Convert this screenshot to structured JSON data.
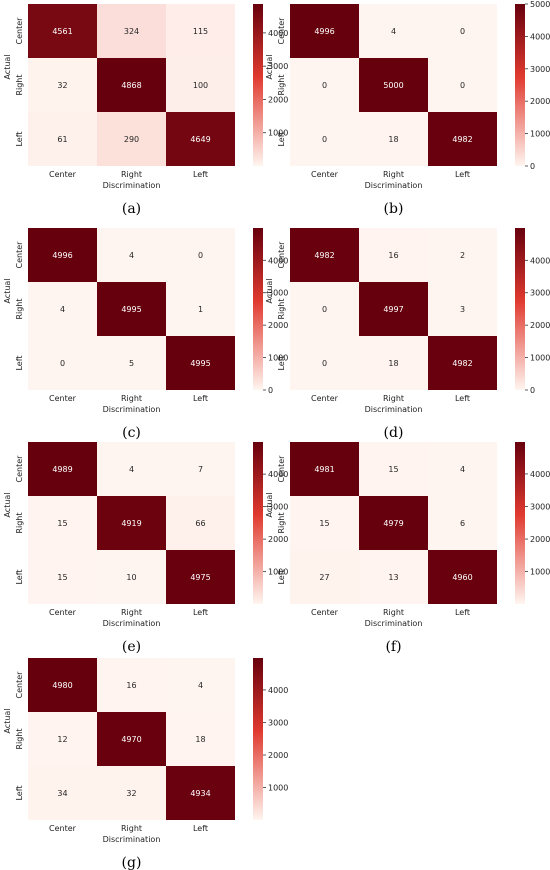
{
  "color_scale": {
    "low": "#fff5f0",
    "mid": "#e03a2f",
    "high": "#67000d"
  },
  "chart_data": [
    {
      "type": "heatmap",
      "caption": "(a)",
      "xlabel": "Discrimination",
      "ylabel": "Actual",
      "x_categories": [
        "Center",
        "Right",
        "Left"
      ],
      "y_categories": [
        "Center",
        "Right",
        "Left"
      ],
      "values": [
        [
          4561,
          324,
          115
        ],
        [
          32,
          4868,
          100
        ],
        [
          61,
          290,
          4649
        ]
      ],
      "colorbar": {
        "range": [
          0,
          4868
        ],
        "ticks": [
          1000,
          2000,
          3000,
          4000
        ]
      }
    },
    {
      "type": "heatmap",
      "caption": "(b)",
      "xlabel": "Discrimination",
      "ylabel": "Actual",
      "x_categories": [
        "Center",
        "Right",
        "Left"
      ],
      "y_categories": [
        "Center",
        "Right",
        "Left"
      ],
      "values": [
        [
          4996,
          4,
          0
        ],
        [
          0,
          5000,
          0
        ],
        [
          0,
          18,
          4982
        ]
      ],
      "colorbar": {
        "range": [
          0,
          5000
        ],
        "ticks": [
          0,
          1000,
          2000,
          3000,
          4000,
          5000
        ]
      }
    },
    {
      "type": "heatmap",
      "caption": "(c)",
      "xlabel": "Discrimination",
      "ylabel": "Actual",
      "x_categories": [
        "Center",
        "Right",
        "Left"
      ],
      "y_categories": [
        "Center",
        "Right",
        "Left"
      ],
      "values": [
        [
          4996,
          4,
          0
        ],
        [
          4,
          4995,
          1
        ],
        [
          0,
          5,
          4995
        ]
      ],
      "colorbar": {
        "range": [
          0,
          4996
        ],
        "ticks": [
          0,
          1000,
          2000,
          3000,
          4000
        ]
      }
    },
    {
      "type": "heatmap",
      "caption": "(d)",
      "xlabel": "Discrimination",
      "ylabel": "Actual",
      "x_categories": [
        "Center",
        "Right",
        "Left"
      ],
      "y_categories": [
        "Center",
        "Right",
        "Left"
      ],
      "values": [
        [
          4982,
          16,
          2
        ],
        [
          0,
          4997,
          3
        ],
        [
          0,
          18,
          4982
        ]
      ],
      "colorbar": {
        "range": [
          0,
          4997
        ],
        "ticks": [
          0,
          1000,
          2000,
          3000,
          4000
        ]
      }
    },
    {
      "type": "heatmap",
      "caption": "(e)",
      "xlabel": "Discrimination",
      "ylabel": "Actual",
      "x_categories": [
        "Center",
        "Right",
        "Left"
      ],
      "y_categories": [
        "Center",
        "Right",
        "Left"
      ],
      "values": [
        [
          4989,
          4,
          7
        ],
        [
          15,
          4919,
          66
        ],
        [
          15,
          10,
          4975
        ]
      ],
      "colorbar": {
        "range": [
          4,
          4989
        ],
        "ticks": [
          1000,
          2000,
          3000,
          4000
        ]
      }
    },
    {
      "type": "heatmap",
      "caption": "(f)",
      "xlabel": "Discrimination",
      "ylabel": "Actual",
      "x_categories": [
        "Center",
        "Right",
        "Left"
      ],
      "y_categories": [
        "Center",
        "Right",
        "Left"
      ],
      "values": [
        [
          4981,
          15,
          4
        ],
        [
          15,
          4979,
          6
        ],
        [
          27,
          13,
          4960
        ]
      ],
      "colorbar": {
        "range": [
          4,
          4981
        ],
        "ticks": [
          1000,
          2000,
          3000,
          4000
        ]
      }
    },
    {
      "type": "heatmap",
      "caption": "(g)",
      "xlabel": "Discrimination",
      "ylabel": "Actual",
      "x_categories": [
        "Center",
        "Right",
        "Left"
      ],
      "y_categories": [
        "Center",
        "Right",
        "Left"
      ],
      "values": [
        [
          4980,
          16,
          4
        ],
        [
          12,
          4970,
          18
        ],
        [
          34,
          32,
          4934
        ]
      ],
      "colorbar": {
        "range": [
          4,
          4980
        ],
        "ticks": [
          1000,
          2000,
          3000,
          4000
        ]
      }
    }
  ]
}
